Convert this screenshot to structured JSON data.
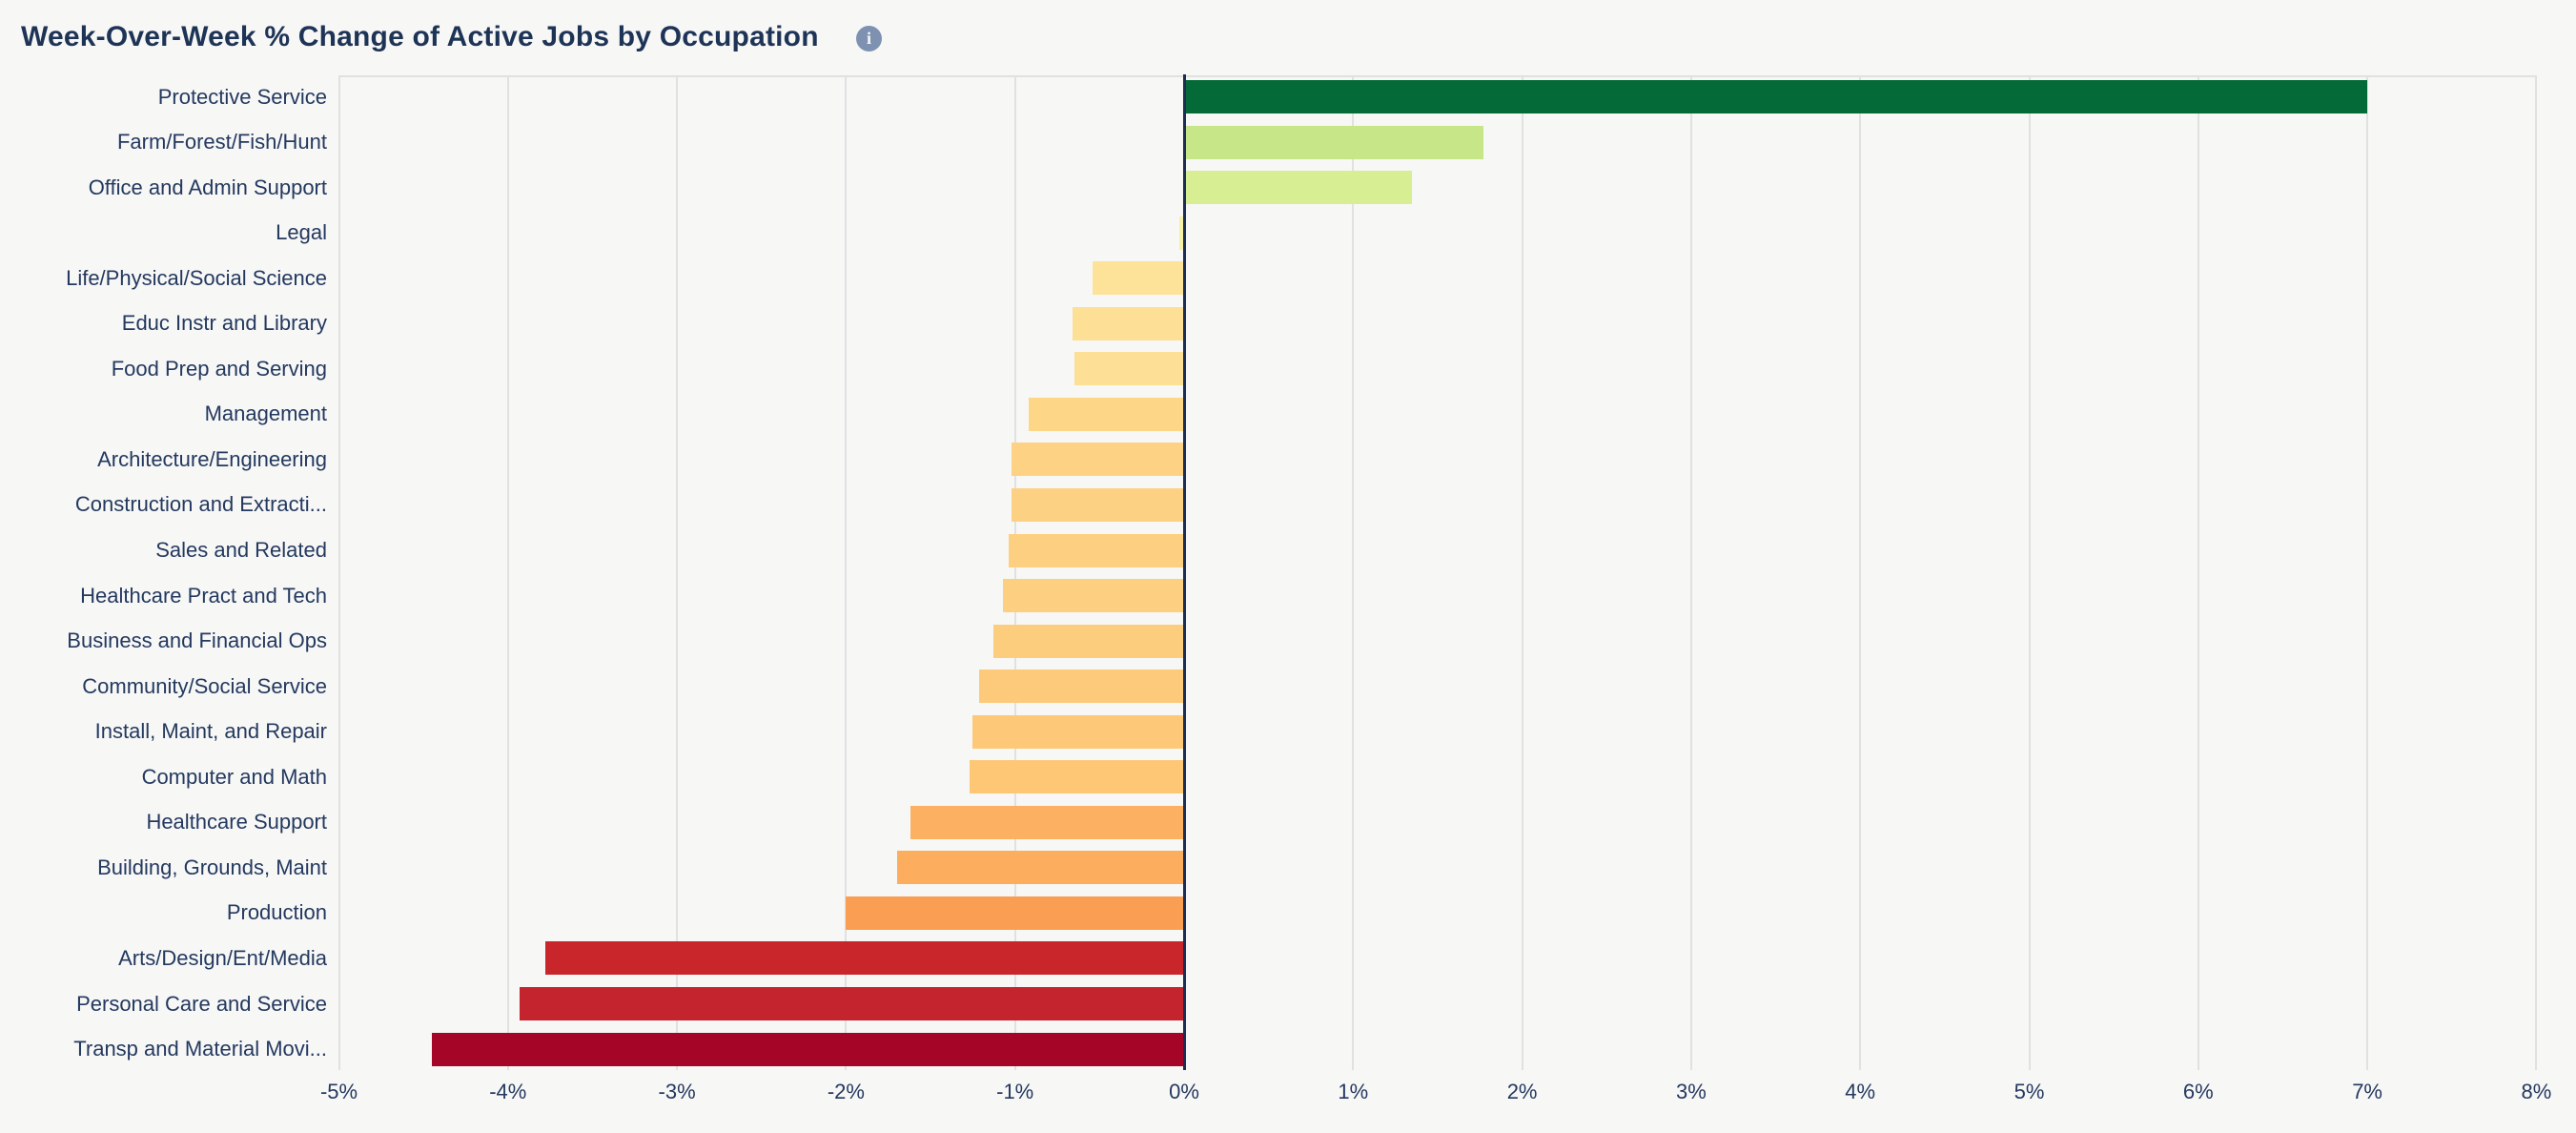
{
  "title": "Week-Over-Week % Change of Active Jobs by Occupation",
  "info_icon": {
    "glyph": "i"
  },
  "colors": {
    "background": "#f7f7f6",
    "title_text": "#1e3456",
    "label_text": "#24395f",
    "gridline": "#e1e1e1",
    "zero_line": "#1c2e51",
    "info_icon_bg": "#7e91b1",
    "positive_max": "#046a38",
    "negative_max": "#a50627"
  },
  "chart_data": {
    "type": "bar",
    "orientation": "horizontal",
    "title": "Week-Over-Week % Change of Active Jobs by Occupation",
    "xlabel": "",
    "ylabel": "",
    "xlim": [
      -5,
      8
    ],
    "grid": true,
    "legend": false,
    "x_tick_values": [
      -5,
      -4,
      -3,
      -2,
      -1,
      0,
      1,
      2,
      3,
      4,
      5,
      6,
      7,
      8
    ],
    "x_tick_labels": [
      "-5%",
      "-4%",
      "-3%",
      "-2%",
      "-1%",
      "0%",
      "1%",
      "2%",
      "3%",
      "4%",
      "5%",
      "6%",
      "7%",
      "8%"
    ],
    "value_unit": "percent",
    "categories": [
      "Protective Service",
      "Farm/Forest/Fish/Hunt",
      "Office and Admin Support",
      "Legal",
      "Life/Physical/Social Science",
      "Educ Instr and Library",
      "Food Prep and Serving",
      "Management",
      "Architecture/Engineering",
      "Construction and Extracti...",
      "Sales and Related",
      "Healthcare Pract and Tech",
      "Business and Financial Ops",
      "Community/Social Service",
      "Install, Maint, and Repair",
      "Computer and Math",
      "Healthcare Support",
      "Building, Grounds, Maint",
      "Production",
      "Arts/Design/Ent/Media",
      "Personal Care and Service",
      "Transp and Material Movi..."
    ],
    "values": [
      7.0,
      1.77,
      1.35,
      -0.03,
      -0.54,
      -0.66,
      -0.65,
      -0.92,
      -1.02,
      -1.02,
      -1.04,
      -1.07,
      -1.13,
      -1.21,
      -1.25,
      -1.27,
      -1.62,
      -1.7,
      -2.0,
      -3.78,
      -3.93,
      -4.45
    ],
    "bar_colors": [
      "#046a38",
      "#c6e687",
      "#d8ee92",
      "#f7f0a6",
      "#fde399",
      "#fde095",
      "#fde095",
      "#fdd688",
      "#fdd285",
      "#fdd183",
      "#fdd081",
      "#fdd081",
      "#fdcd7e",
      "#fdca7b",
      "#fdc878",
      "#fdc776",
      "#fcb162",
      "#fcae5e",
      "#f99e53",
      "#c9262c",
      "#c4242e",
      "#a50627"
    ]
  }
}
